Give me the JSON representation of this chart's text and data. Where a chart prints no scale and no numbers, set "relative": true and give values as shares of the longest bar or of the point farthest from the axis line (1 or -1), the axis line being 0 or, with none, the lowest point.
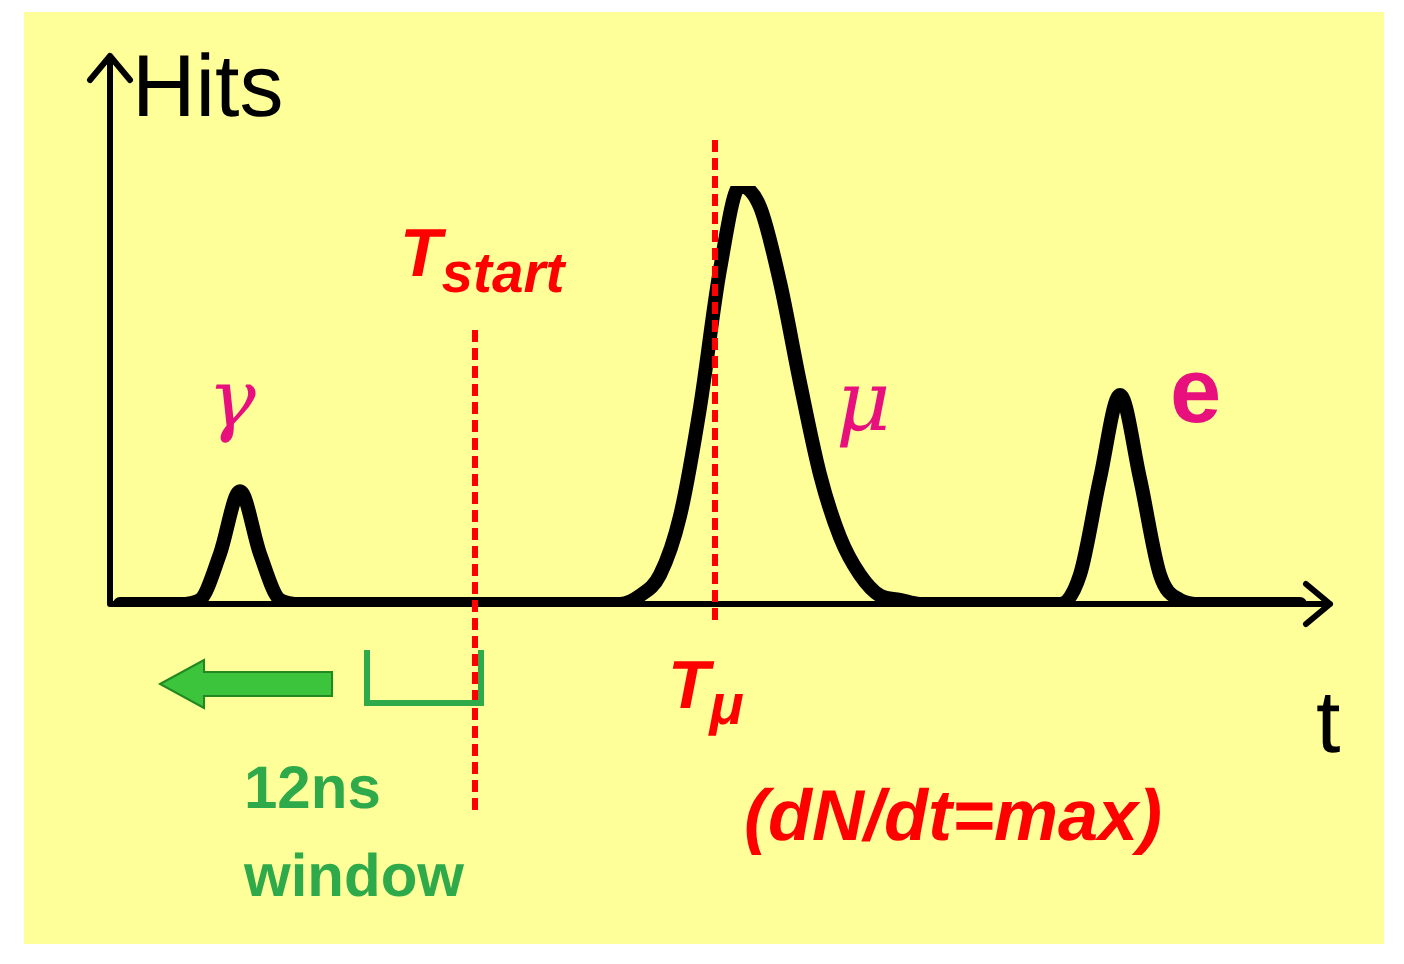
{
  "chart_data": {
    "type": "line",
    "relative": true,
    "xlabel": "t",
    "ylabel": "Hits",
    "categories": [
      null,
      null,
      null,
      null,
      null,
      null,
      null,
      null,
      null,
      null,
      null,
      null,
      null,
      null,
      null,
      null,
      null,
      null,
      null,
      null,
      null,
      null,
      null,
      null,
      null,
      null,
      null,
      null,
      null,
      null,
      null,
      null,
      null,
      null,
      null,
      null,
      null,
      null,
      null,
      null,
      null,
      null,
      null,
      null,
      null,
      null,
      null,
      null,
      null,
      null,
      null,
      null,
      null,
      null,
      null,
      null,
      null,
      null,
      null,
      null
    ],
    "series": [
      {
        "color": "#000000",
        "values": [
          0,
          0,
          0,
          0,
          0.01,
          0.12,
          0.27,
          0.12,
          0.01,
          0,
          0,
          0,
          0,
          0,
          0,
          0,
          0,
          0,
          0,
          0,
          0,
          0,
          0,
          0,
          0,
          0,
          0.02,
          0.07,
          0.21,
          0.47,
          0.8,
          1,
          0.95,
          0.77,
          0.53,
          0.31,
          0.16,
          0.07,
          0.02,
          0.01,
          0,
          0,
          0,
          0,
          0,
          0,
          0,
          0,
          0.07,
          0.3,
          0.5,
          0.3,
          0.07,
          0.01,
          0,
          0,
          0,
          0,
          0,
          0
        ]
      }
    ],
    "annotations": [
      "γ",
      "T$_{start}$",
      "μ",
      "e",
      "T$_{μ}$",
      "(dN/dt=max)",
      "12ns",
      "window"
    ],
    "marker": "none",
    "line_style": "solid",
    "legend": false
  }
}
